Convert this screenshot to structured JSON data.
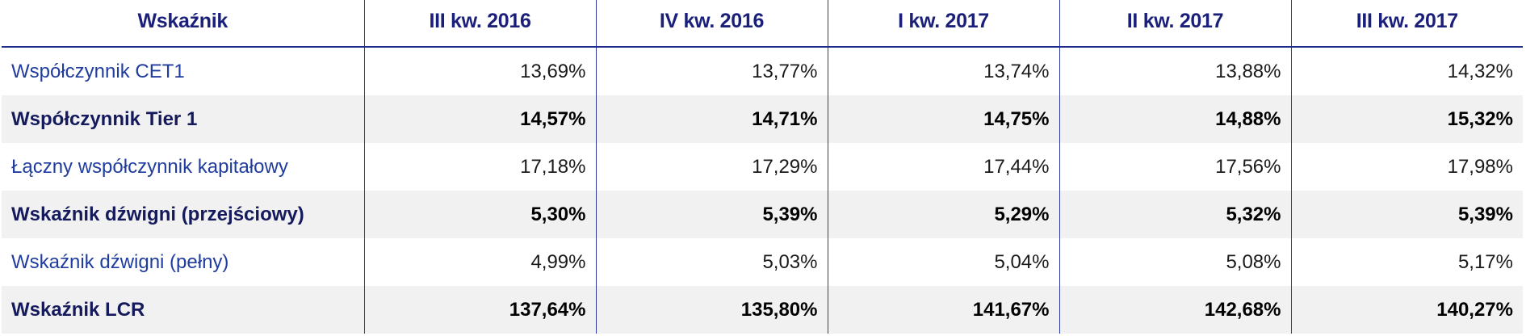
{
  "table": {
    "headers": [
      "Wskaźnik",
      "III kw. 2016",
      "IV kw. 2016",
      "I kw. 2017",
      "II kw. 2017",
      "III kw. 2017"
    ],
    "rows": [
      {
        "label": "Współczynnik CET1",
        "style": "light",
        "values": [
          "13,69%",
          "13,77%",
          "13,74%",
          "13,88%",
          "14,32%"
        ]
      },
      {
        "label": "Współczynnik Tier 1",
        "style": "bold",
        "values": [
          "14,57%",
          "14,71%",
          "14,75%",
          "14,88%",
          "15,32%"
        ]
      },
      {
        "label": "Łączny współczynnik kapitałowy",
        "style": "light",
        "values": [
          "17,18%",
          "17,29%",
          "17,44%",
          "17,56%",
          "17,98%"
        ]
      },
      {
        "label": "Wskaźnik dźwigni (przejściowy)",
        "style": "bold",
        "values": [
          "5,30%",
          "5,39%",
          "5,29%",
          "5,32%",
          "5,39%"
        ]
      },
      {
        "label": "Wskaźnik dźwigni (pełny)",
        "style": "light",
        "values": [
          "4,99%",
          "5,03%",
          "5,04%",
          "5,08%",
          "5,17%"
        ]
      },
      {
        "label": "Wskaźnik LCR",
        "style": "bold",
        "values": [
          "137,64%",
          "135,80%",
          "141,67%",
          "142,68%",
          "140,27%"
        ]
      }
    ]
  },
  "colors": {
    "header_text": "#1a1f7a",
    "label_light": "#1f3c9e",
    "label_bold": "#141a5c",
    "rule": "#1e2a8c",
    "row_shade": "#f1f1f1"
  }
}
